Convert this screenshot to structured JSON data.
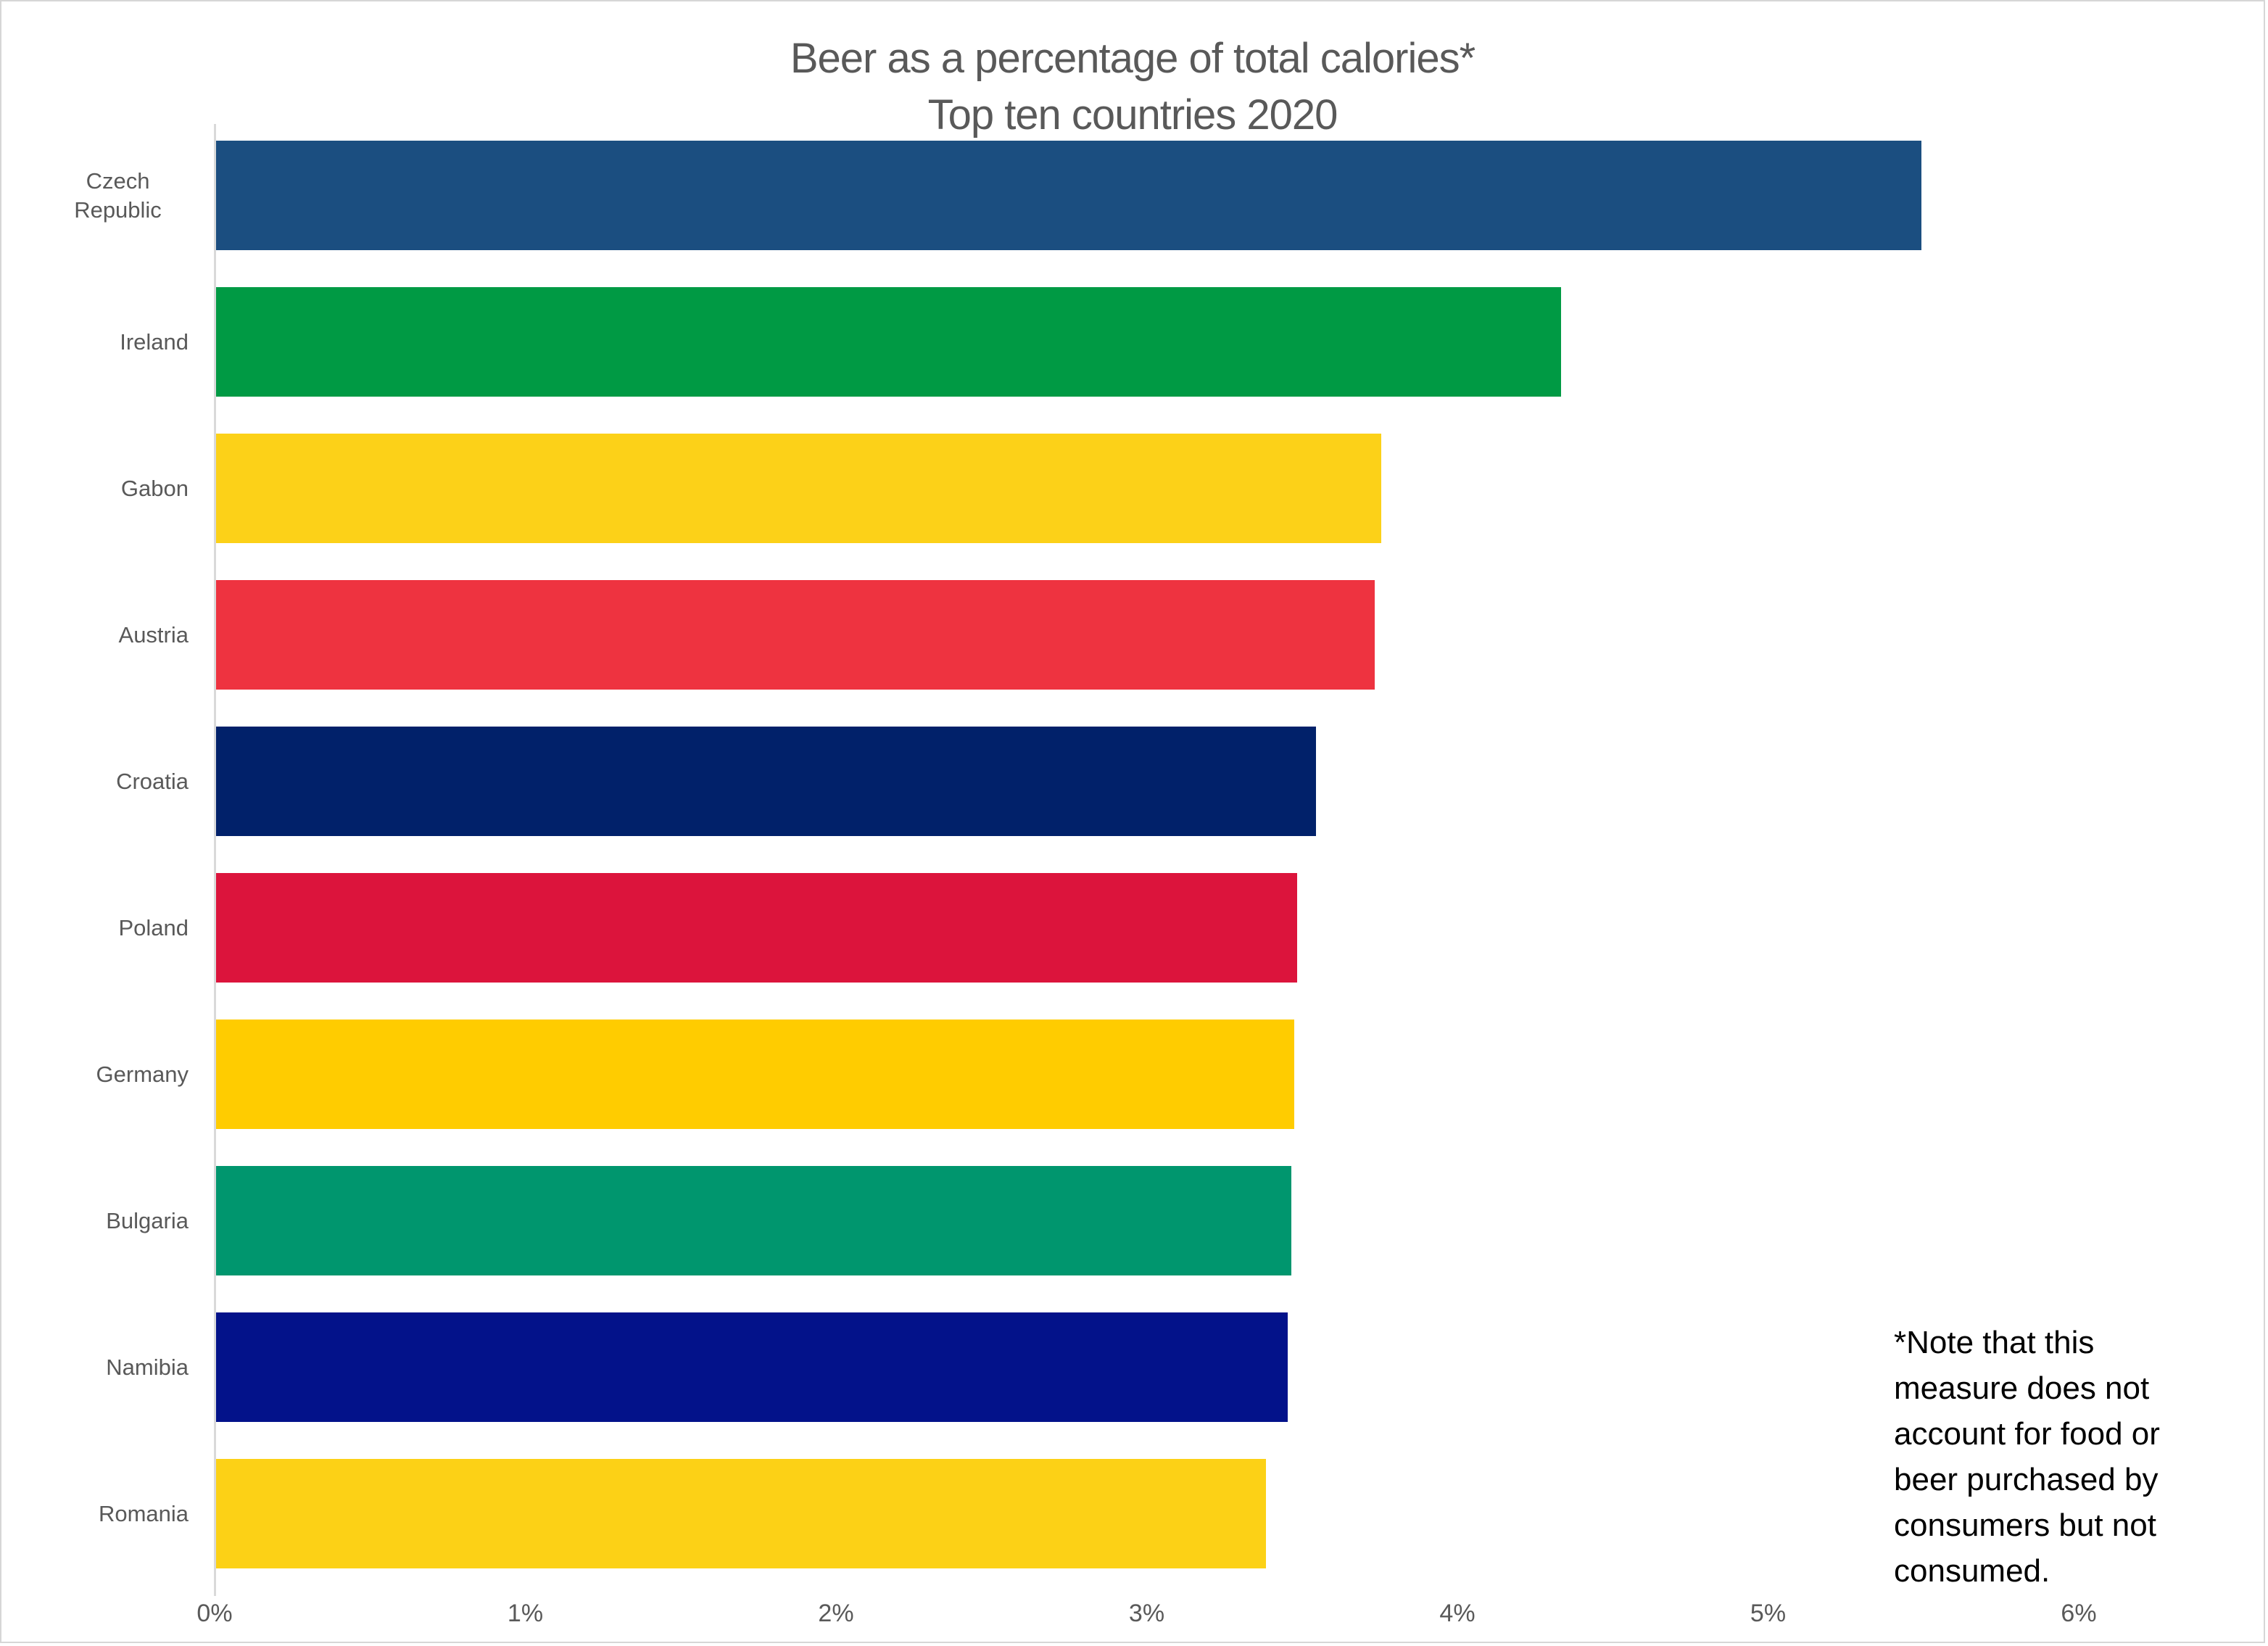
{
  "title": {
    "line1": "Beer as a percentage of total calories*",
    "line2": "Top ten countries 2020"
  },
  "footnote": {
    "full_text": "*Note that this measure does not account for food or beer purchased by consumers but not consumed.",
    "lines": [
      "*Note that this",
      "measure does not",
      "account for food or",
      "beer purchased by",
      "consumers but not",
      "consumed."
    ]
  },
  "chart_data": {
    "type": "bar",
    "orientation": "horizontal",
    "title": "Beer as a percentage of total calories*",
    "subtitle": "Top ten countries 2020",
    "categories": [
      "Czech Republic",
      "Ireland",
      "Gabon",
      "Austria",
      "Croatia",
      "Poland",
      "Germany",
      "Bulgaria",
      "Namibia",
      "Romania"
    ],
    "values": [
      5.49,
      4.33,
      3.75,
      3.73,
      3.54,
      3.48,
      3.47,
      3.46,
      3.45,
      3.38
    ],
    "unit": "%",
    "bar_colors": [
      "#1B4E80",
      "#009A44",
      "#FCD118",
      "#EE3340",
      "#01216A",
      "#DC143C",
      "#FFCC00",
      "#00966E",
      "#03128A",
      "#FCD116"
    ],
    "x_ticks": [
      {
        "value": 0,
        "label": "0%"
      },
      {
        "value": 1,
        "label": "1%"
      },
      {
        "value": 2,
        "label": "2%"
      },
      {
        "value": 3,
        "label": "3%"
      },
      {
        "value": 4,
        "label": "4%"
      },
      {
        "value": 5,
        "label": "5%"
      },
      {
        "value": 6,
        "label": "6%"
      }
    ],
    "xlim": [
      0,
      6.55
    ],
    "grid": false,
    "legend": "none",
    "colors": {
      "text_gray": "#595959",
      "axis_line": "#D9D9D9",
      "footnote_text": "#000000",
      "background": "#FFFFFF"
    }
  }
}
